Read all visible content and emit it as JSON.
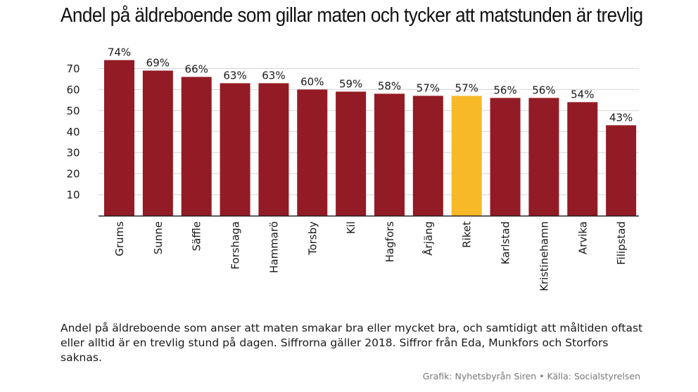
{
  "title": "Andel på äldreboende som gillar maten och tycker att matstunden är trevlig",
  "description": "Andel på äldreboende som anser att maten smakar bra eller mycket bra, och samtidigt att måltiden oftast eller alltid är en trevlig stund på dagen. Siffrorna gäller 2018. Siffror från Eda, Munkfors och Storfors saknas.",
  "credit": "Grafik: Nyhetsbyrån Siren • Källa: Socialstyrelsen",
  "colors": {
    "bar": "#931b25",
    "highlight": "#f7b928",
    "grid": "#d4d4d4",
    "axis": "#222222"
  },
  "chart_data": {
    "type": "bar",
    "title": "Andel på äldreboende som gillar maten och tycker att matstunden är trevlig",
    "xlabel": "",
    "ylabel": "",
    "categories": [
      "Grums",
      "Sunne",
      "Säffle",
      "Forshaga",
      "Hammarö",
      "Torsby",
      "Kil",
      "Hagfors",
      "Årjäng",
      "Riket",
      "Karlstad",
      "Kristinehamn",
      "Arvika",
      "Filipstad"
    ],
    "values": [
      74,
      69,
      66,
      63,
      63,
      60,
      59,
      58,
      57,
      57,
      56,
      56,
      54,
      43
    ],
    "value_labels": [
      "74%",
      "69%",
      "66%",
      "63%",
      "63%",
      "60%",
      "59%",
      "58%",
      "57%",
      "57%",
      "56%",
      "56%",
      "54%",
      "43%"
    ],
    "highlight_category": "Riket",
    "ylim": [
      0,
      75
    ],
    "yticks": [
      10,
      20,
      30,
      40,
      50,
      60,
      70
    ],
    "ytick_labels": [
      "10",
      "20",
      "30",
      "40",
      "50",
      "60",
      "70"
    ],
    "grid": true,
    "legend": "none"
  }
}
